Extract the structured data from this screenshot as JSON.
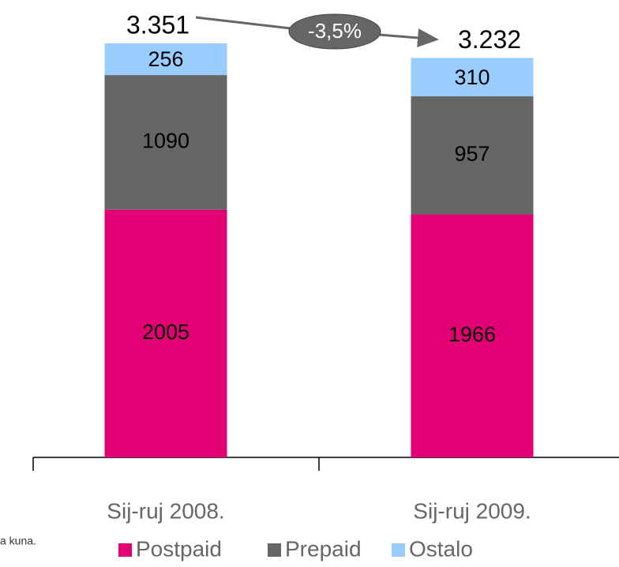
{
  "chart_data": {
    "type": "stacked_bar",
    "categories": [
      "Sij-ruj 2008.",
      "Sij-ruj 2009."
    ],
    "series": [
      {
        "name": "Postpaid",
        "color": "#e20074",
        "values": [
          2005,
          1966
        ]
      },
      {
        "name": "Prepaid",
        "color": "#666666",
        "values": [
          1090,
          957
        ]
      },
      {
        "name": "Ostalo",
        "color": "#99ccff",
        "values": [
          256,
          310
        ]
      }
    ],
    "totals": {
      "values": [
        3351,
        3232
      ],
      "value_labels": [
        "3.351",
        "3.232"
      ]
    },
    "annotation": "-3,5%",
    "footnote": "a kuna."
  }
}
